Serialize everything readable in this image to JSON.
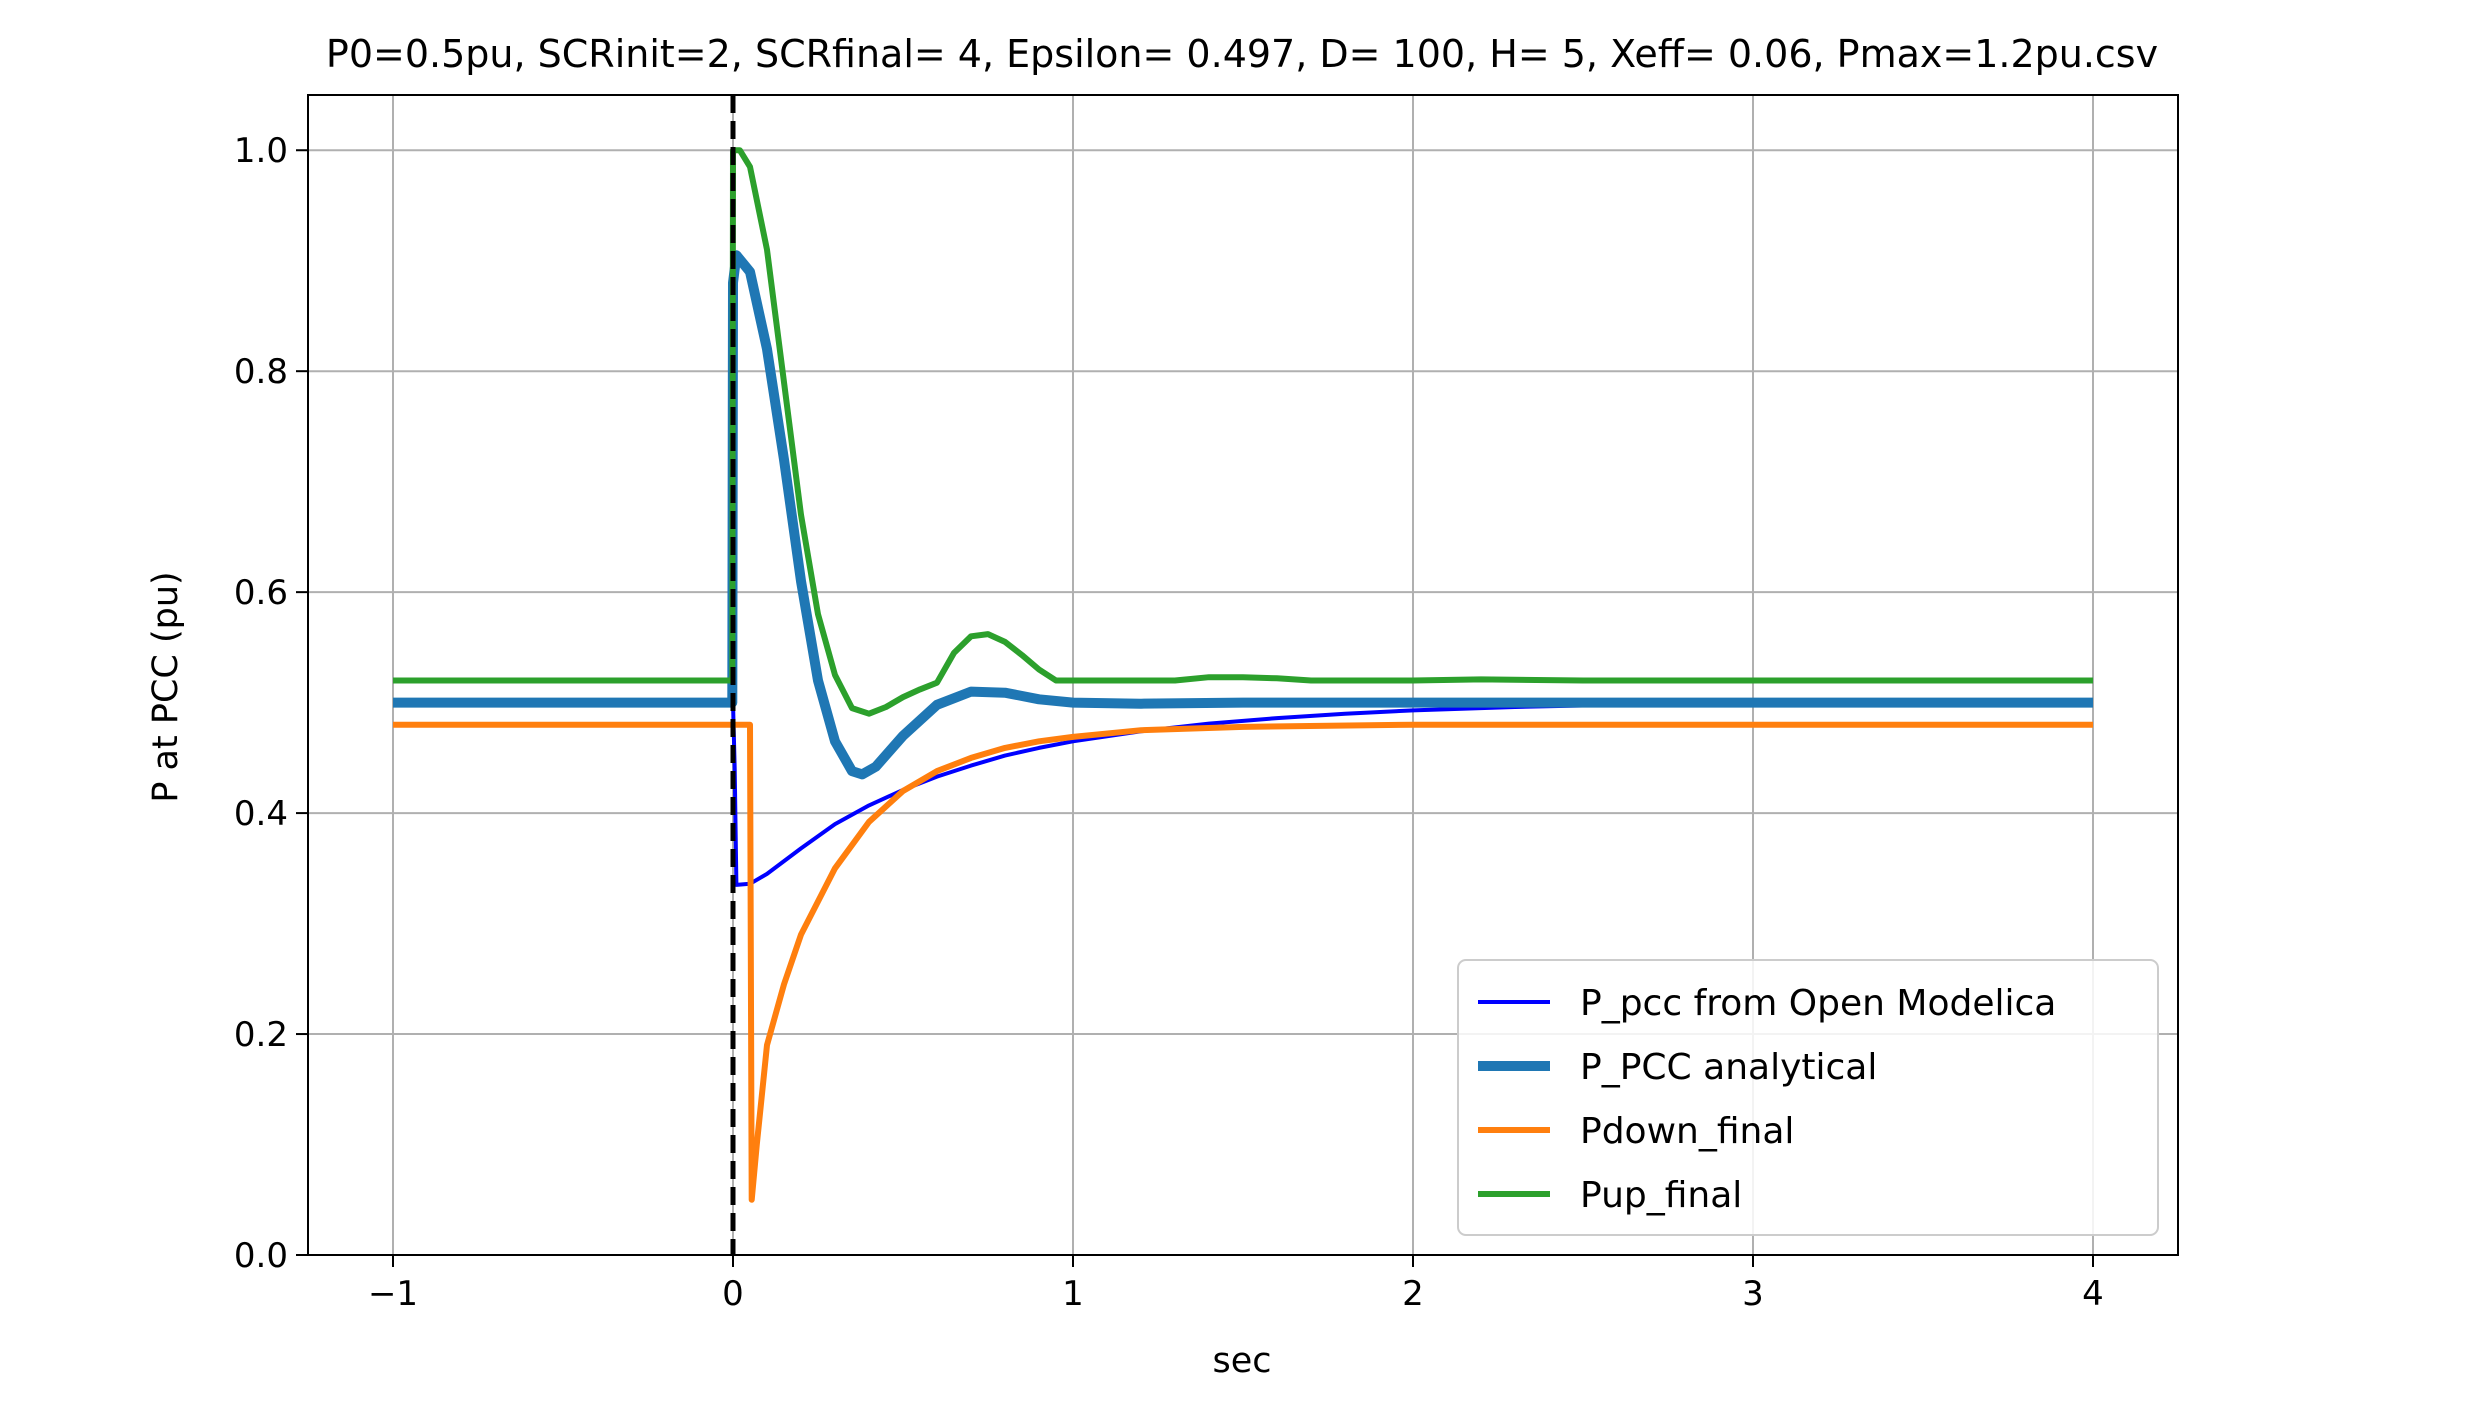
{
  "chart_data": {
    "type": "line",
    "title": "P0=0.5pu, SCRinit=2, SCRfinal= 4, Epsilon= 0.497, D= 100, H= 5, Xeff= 0.06, Pmax=1.2pu.csv",
    "xlabel": "sec",
    "ylabel": "P at PCC (pu)",
    "xlim": [
      -1.25,
      4.25
    ],
    "ylim": [
      0.0,
      1.05
    ],
    "xticks": [
      -1,
      0,
      1,
      2,
      3,
      4
    ],
    "xtick_labels": [
      "−1",
      "0",
      "1",
      "2",
      "3",
      "4"
    ],
    "yticks": [
      0.0,
      0.2,
      0.4,
      0.6,
      0.8,
      1.0
    ],
    "ytick_labels": [
      "0.0",
      "0.2",
      "0.4",
      "0.6",
      "0.8",
      "1.0"
    ],
    "grid": true,
    "legend_position": "lower-right",
    "vline": {
      "x": 0,
      "style": "dashed",
      "color": "#000000"
    },
    "series": [
      {
        "name": "P_pcc from Open Modelica",
        "color": "#0000ff",
        "linewidth": "thin",
        "points": [
          [
            -1.0,
            0.5
          ],
          [
            -0.005,
            0.5
          ],
          [
            0.0,
            0.5
          ],
          [
            0.005,
            0.44
          ],
          [
            0.01,
            0.335
          ],
          [
            0.05,
            0.336
          ],
          [
            0.1,
            0.345
          ],
          [
            0.2,
            0.368
          ],
          [
            0.3,
            0.39
          ],
          [
            0.4,
            0.407
          ],
          [
            0.5,
            0.421
          ],
          [
            0.6,
            0.433
          ],
          [
            0.7,
            0.443
          ],
          [
            0.8,
            0.452
          ],
          [
            0.9,
            0.459
          ],
          [
            1.0,
            0.465
          ],
          [
            1.2,
            0.474
          ],
          [
            1.4,
            0.481
          ],
          [
            1.6,
            0.486
          ],
          [
            1.8,
            0.49
          ],
          [
            2.0,
            0.493
          ],
          [
            2.3,
            0.496
          ],
          [
            2.6,
            0.498
          ],
          [
            3.0,
            0.499
          ],
          [
            3.5,
            0.5
          ],
          [
            4.0,
            0.5
          ]
        ]
      },
      {
        "name": "P_PCC analytical",
        "color": "#1f77b4",
        "linewidth": "thick",
        "points": [
          [
            -1.0,
            0.5
          ],
          [
            -0.002,
            0.5
          ],
          [
            0.0,
            0.88
          ],
          [
            0.01,
            0.905
          ],
          [
            0.05,
            0.89
          ],
          [
            0.1,
            0.82
          ],
          [
            0.15,
            0.72
          ],
          [
            0.2,
            0.61
          ],
          [
            0.25,
            0.52
          ],
          [
            0.3,
            0.465
          ],
          [
            0.35,
            0.438
          ],
          [
            0.38,
            0.435
          ],
          [
            0.42,
            0.442
          ],
          [
            0.5,
            0.47
          ],
          [
            0.6,
            0.498
          ],
          [
            0.7,
            0.51
          ],
          [
            0.8,
            0.509
          ],
          [
            0.9,
            0.503
          ],
          [
            1.0,
            0.5
          ],
          [
            1.2,
            0.499
          ],
          [
            1.5,
            0.5
          ],
          [
            2.0,
            0.5
          ],
          [
            3.0,
            0.5
          ],
          [
            4.0,
            0.5
          ]
        ]
      },
      {
        "name": "Pdown_final",
        "color": "#ff7f0e",
        "linewidth": "medium",
        "points": [
          [
            -1.0,
            0.48
          ],
          [
            0.04,
            0.48
          ],
          [
            0.05,
            0.48
          ],
          [
            0.055,
            0.05
          ],
          [
            0.07,
            0.1
          ],
          [
            0.1,
            0.19
          ],
          [
            0.15,
            0.245
          ],
          [
            0.2,
            0.29
          ],
          [
            0.3,
            0.35
          ],
          [
            0.4,
            0.392
          ],
          [
            0.5,
            0.42
          ],
          [
            0.6,
            0.438
          ],
          [
            0.7,
            0.45
          ],
          [
            0.8,
            0.459
          ],
          [
            0.9,
            0.465
          ],
          [
            1.0,
            0.469
          ],
          [
            1.2,
            0.475
          ],
          [
            1.5,
            0.478
          ],
          [
            2.0,
            0.48
          ],
          [
            3.0,
            0.48
          ],
          [
            4.0,
            0.48
          ]
        ]
      },
      {
        "name": "Pup_final",
        "color": "#2ca02c",
        "linewidth": "medium",
        "points": [
          [
            -1.0,
            0.52
          ],
          [
            -0.002,
            0.52
          ],
          [
            0.0,
            1.0
          ],
          [
            0.02,
            1.0
          ],
          [
            0.05,
            0.985
          ],
          [
            0.1,
            0.91
          ],
          [
            0.15,
            0.79
          ],
          [
            0.2,
            0.67
          ],
          [
            0.25,
            0.58
          ],
          [
            0.3,
            0.525
          ],
          [
            0.35,
            0.495
          ],
          [
            0.4,
            0.49
          ],
          [
            0.45,
            0.496
          ],
          [
            0.5,
            0.505
          ],
          [
            0.55,
            0.512
          ],
          [
            0.6,
            0.518
          ],
          [
            0.65,
            0.545
          ],
          [
            0.7,
            0.56
          ],
          [
            0.75,
            0.562
          ],
          [
            0.8,
            0.555
          ],
          [
            0.85,
            0.543
          ],
          [
            0.9,
            0.53
          ],
          [
            0.95,
            0.52
          ],
          [
            1.0,
            0.52
          ],
          [
            1.3,
            0.52
          ],
          [
            1.4,
            0.523
          ],
          [
            1.5,
            0.523
          ],
          [
            1.6,
            0.522
          ],
          [
            1.7,
            0.52
          ],
          [
            2.0,
            0.52
          ],
          [
            2.2,
            0.521
          ],
          [
            2.5,
            0.52
          ],
          [
            3.0,
            0.52
          ],
          [
            4.0,
            0.52
          ]
        ]
      }
    ]
  }
}
